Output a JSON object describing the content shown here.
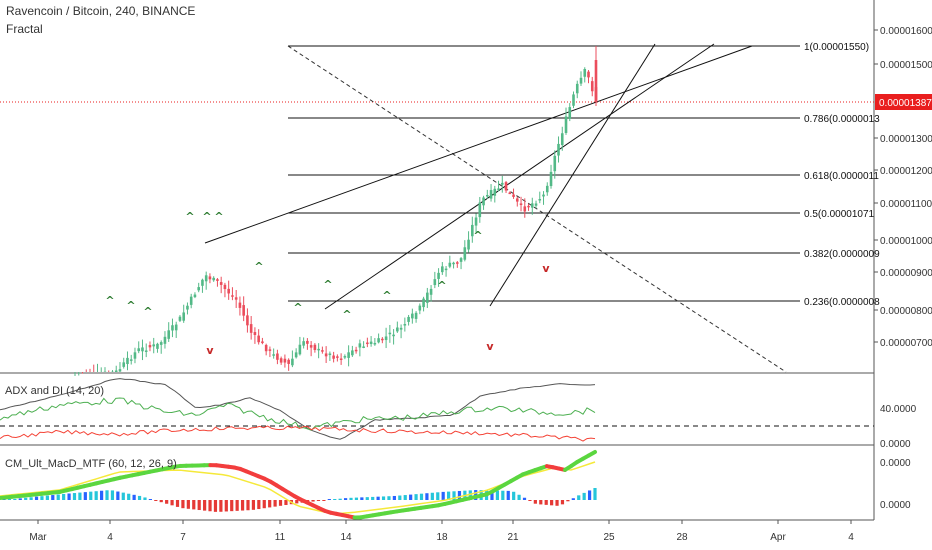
{
  "header": {
    "title": "Ravencoin / Bitcoin, 240, BINANCE",
    "indicator": "Fractal"
  },
  "panes": {
    "adx_label": "ADX and DI (14, 20)",
    "macd_label": "CM_Ult_MacD_MTF (60, 12, 26, 9)"
  },
  "colors": {
    "up": "#53b987",
    "down": "#eb4d5c",
    "current_price": "#e91e1e",
    "adx": "#555555",
    "di_plus": "#4caf50",
    "di_minus": "#f44336",
    "macd_up": "#5bd63f",
    "macd_down": "#f23d3d",
    "signal": "#f5e93a",
    "hist_pos": "#2962ff",
    "hist_pos_light": "#26c6da",
    "hist_neg": "#e53935"
  },
  "chart_data": {
    "type": "candlestick",
    "price_axis": {
      "ticks": [
        "0.00001600",
        "0.00001500",
        "0.00001300",
        "0.00001200",
        "0.00001100",
        "0.00001000",
        "0.00000900",
        "0.00000800",
        "0.00000700"
      ],
      "current_price": "0.00001387"
    },
    "x_axis": {
      "ticks": [
        "Mar",
        "4",
        "7",
        "11",
        "14",
        "18",
        "21",
        "25",
        "28",
        "Apr",
        "4"
      ]
    },
    "fib_levels": [
      {
        "ratio": "1",
        "label": "1(0.00001550)"
      },
      {
        "ratio": "0.786",
        "label": "0.786(0.0000013"
      },
      {
        "ratio": "0.618",
        "label": "0.618(0.0000011"
      },
      {
        "ratio": "0.5",
        "label": "0.5(0.00001071"
      },
      {
        "ratio": "0.382",
        "label": "0.382(0.0000009"
      },
      {
        "ratio": "0.236",
        "label": "0.236(0.0000008"
      }
    ],
    "adx_axis": {
      "ticks": [
        "40.0000",
        "0.0000"
      ]
    },
    "macd_axis": {
      "ticks": [
        "0.0000",
        "0.0000"
      ]
    }
  }
}
